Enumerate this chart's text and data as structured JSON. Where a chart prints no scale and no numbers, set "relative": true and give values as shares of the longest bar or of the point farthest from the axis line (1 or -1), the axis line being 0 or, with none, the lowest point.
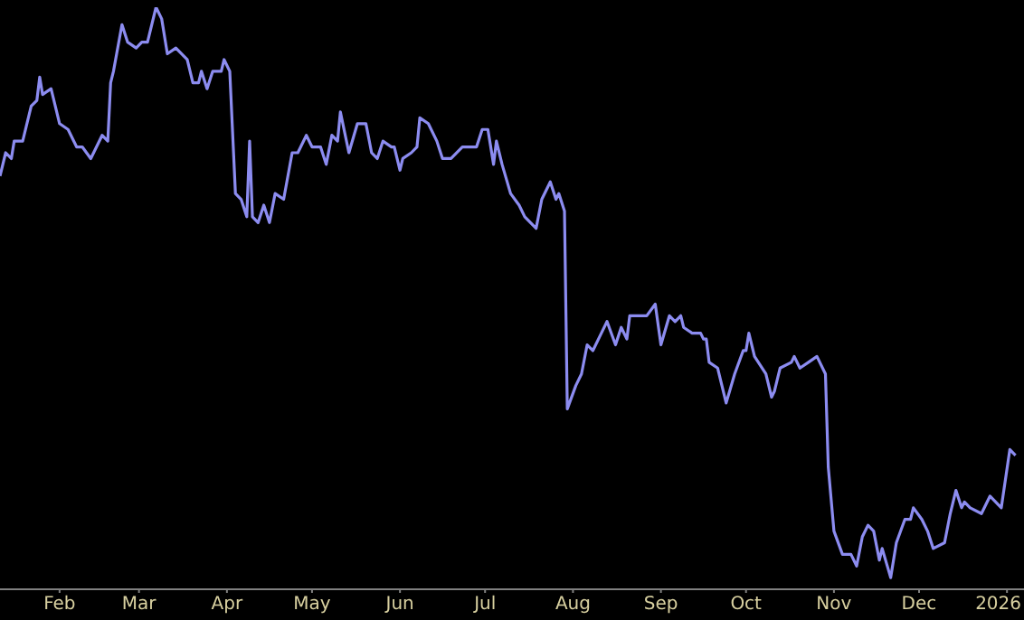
{
  "chart_data": {
    "type": "line",
    "relative": true,
    "grid": false,
    "legend": false,
    "marker": "none",
    "line_style": "solid",
    "xlim": [
      "2025-01-11",
      "2026-01-07"
    ],
    "xticks": [
      {
        "value": "2025-02-01",
        "label": "Feb"
      },
      {
        "value": "2025-03-01",
        "label": "Mar"
      },
      {
        "value": "2025-04-01",
        "label": "Apr"
      },
      {
        "value": "2025-05-01",
        "label": "May"
      },
      {
        "value": "2025-06-01",
        "label": "Jun"
      },
      {
        "value": "2025-07-01",
        "label": "Jul"
      },
      {
        "value": "2025-08-01",
        "label": "Aug"
      },
      {
        "value": "2025-09-01",
        "label": "Sep"
      },
      {
        "value": "2025-10-01",
        "label": "Oct"
      },
      {
        "value": "2025-11-01",
        "label": "Nov"
      },
      {
        "value": "2025-12-01",
        "label": "Dec"
      },
      {
        "value": "2026-01-01",
        "label": "2026"
      }
    ],
    "x": [
      "2025-01-11",
      "2025-01-13",
      "2025-01-15",
      "2025-01-16",
      "2025-01-19",
      "2025-01-22",
      "2025-01-24",
      "2025-01-25",
      "2025-01-26",
      "2025-01-29",
      "2025-02-01",
      "2025-02-04",
      "2025-02-07",
      "2025-02-09",
      "2025-02-12",
      "2025-02-16",
      "2025-02-18",
      "2025-02-19",
      "2025-02-20",
      "2025-02-23",
      "2025-02-25",
      "2025-02-28",
      "2025-03-02",
      "2025-03-04",
      "2025-03-07",
      "2025-03-09",
      "2025-03-11",
      "2025-03-14",
      "2025-03-18",
      "2025-03-20",
      "2025-03-22",
      "2025-03-23",
      "2025-03-25",
      "2025-03-27",
      "2025-03-30",
      "2025-03-31",
      "2025-04-02",
      "2025-04-04",
      "2025-04-06",
      "2025-04-08",
      "2025-04-09",
      "2025-04-10",
      "2025-04-12",
      "2025-04-14",
      "2025-04-16",
      "2025-04-18",
      "2025-04-21",
      "2025-04-24",
      "2025-04-26",
      "2025-04-29",
      "2025-05-01",
      "2025-05-04",
      "2025-05-06",
      "2025-05-08",
      "2025-05-10",
      "2025-05-11",
      "2025-05-14",
      "2025-05-17",
      "2025-05-20",
      "2025-05-22",
      "2025-05-24",
      "2025-05-26",
      "2025-05-29",
      "2025-05-30",
      "2025-06-01",
      "2025-06-02",
      "2025-06-05",
      "2025-06-07",
      "2025-06-08",
      "2025-06-11",
      "2025-06-14",
      "2025-06-16",
      "2025-06-19",
      "2025-06-23",
      "2025-06-26",
      "2025-06-28",
      "2025-06-30",
      "2025-07-02",
      "2025-07-04",
      "2025-07-05",
      "2025-07-07",
      "2025-07-10",
      "2025-07-13",
      "2025-07-15",
      "2025-07-19",
      "2025-07-21",
      "2025-07-24",
      "2025-07-26",
      "2025-07-27",
      "2025-07-29",
      "2025-07-30",
      "2025-08-02",
      "2025-08-04",
      "2025-08-06",
      "2025-08-08",
      "2025-08-11",
      "2025-08-13",
      "2025-08-16",
      "2025-08-18",
      "2025-08-20",
      "2025-08-21",
      "2025-08-25",
      "2025-08-27",
      "2025-08-30",
      "2025-09-01",
      "2025-09-04",
      "2025-09-06",
      "2025-09-08",
      "2025-09-09",
      "2025-09-12",
      "2025-09-15",
      "2025-09-16",
      "2025-09-17",
      "2025-09-18",
      "2025-09-21",
      "2025-09-24",
      "2025-09-27",
      "2025-09-30",
      "2025-10-01",
      "2025-10-02",
      "2025-10-04",
      "2025-10-08",
      "2025-10-10",
      "2025-10-11",
      "2025-10-13",
      "2025-10-17",
      "2025-10-18",
      "2025-10-20",
      "2025-10-23",
      "2025-10-26",
      "2025-10-29",
      "2025-10-30",
      "2025-11-01",
      "2025-11-04",
      "2025-11-07",
      "2025-11-09",
      "2025-11-11",
      "2025-11-13",
      "2025-11-15",
      "2025-11-17",
      "2025-11-18",
      "2025-11-21",
      "2025-11-23",
      "2025-11-26",
      "2025-11-28",
      "2025-11-29",
      "2025-12-02",
      "2025-12-04",
      "2025-12-06",
      "2025-12-10",
      "2025-12-12",
      "2025-12-14",
      "2025-12-16",
      "2025-12-17",
      "2025-12-19",
      "2025-12-23",
      "2025-12-26",
      "2025-12-28",
      "2025-12-30",
      "2026-01-02",
      "2026-01-04"
    ],
    "series": [
      {
        "color": "#8c8cf0",
        "values": [
          0.71,
          0.75,
          0.74,
          0.77,
          0.77,
          0.83,
          0.84,
          0.88,
          0.85,
          0.86,
          0.8,
          0.79,
          0.76,
          0.76,
          0.74,
          0.78,
          0.77,
          0.87,
          0.89,
          0.97,
          0.94,
          0.93,
          0.94,
          0.94,
          1,
          0.98,
          0.92,
          0.93,
          0.91,
          0.87,
          0.87,
          0.89,
          0.86,
          0.89,
          0.89,
          0.91,
          0.89,
          0.68,
          0.67,
          0.64,
          0.77,
          0.64,
          0.63,
          0.66,
          0.63,
          0.68,
          0.67,
          0.75,
          0.75,
          0.78,
          0.76,
          0.76,
          0.73,
          0.78,
          0.77,
          0.82,
          0.75,
          0.8,
          0.8,
          0.75,
          0.74,
          0.77,
          0.76,
          0.76,
          0.72,
          0.74,
          0.75,
          0.76,
          0.81,
          0.8,
          0.77,
          0.74,
          0.74,
          0.76,
          0.76,
          0.76,
          0.79,
          0.79,
          0.73,
          0.77,
          0.73,
          0.68,
          0.66,
          0.64,
          0.62,
          0.67,
          0.7,
          0.67,
          0.68,
          0.65,
          0.31,
          0.35,
          0.37,
          0.42,
          0.41,
          0.44,
          0.46,
          0.42,
          0.45,
          0.43,
          0.47,
          0.47,
          0.47,
          0.49,
          0.42,
          0.47,
          0.46,
          0.47,
          0.45,
          0.44,
          0.44,
          0.43,
          0.43,
          0.39,
          0.38,
          0.32,
          0.37,
          0.41,
          0.41,
          0.44,
          0.4,
          0.37,
          0.33,
          0.34,
          0.38,
          0.39,
          0.4,
          0.38,
          0.39,
          0.4,
          0.37,
          0.21,
          0.1,
          0.06,
          0.06,
          0.04,
          0.09,
          0.11,
          0.1,
          0.05,
          0.07,
          0.02,
          0.08,
          0.12,
          0.12,
          0.14,
          0.12,
          0.1,
          0.07,
          0.08,
          0.13,
          0.17,
          0.14,
          0.15,
          0.14,
          0.13,
          0.16,
          0.15,
          0.14,
          0.24,
          0.23
        ]
      }
    ]
  }
}
